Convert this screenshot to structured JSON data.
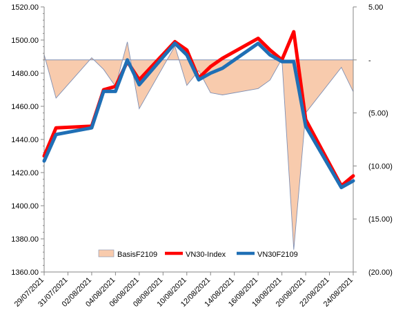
{
  "chart_data": {
    "type": "line",
    "title": "",
    "xlabel": "",
    "ylabel": "",
    "y2label": "",
    "xlim": [
      "2021-07-29",
      "2021-08-24"
    ],
    "ylim": [
      1360,
      1520
    ],
    "y2lim": [
      -20,
      5
    ],
    "y2_reversed_note": "right axis: 5.00 at top, (20.00) at bottom",
    "grid": false,
    "legend_position": "bottom-center",
    "x_ticks": [
      "29/07/2021",
      "31/07/2021",
      "02/08/2021",
      "04/08/2021",
      "06/08/2021",
      "08/08/2021",
      "10/08/2021",
      "12/08/2021",
      "14/08/2021",
      "16/08/2021",
      "18/08/2021",
      "20/08/2021",
      "22/08/2021",
      "24/08/2021"
    ],
    "y_ticks": [
      "1360.00",
      "1380.00",
      "1400.00",
      "1420.00",
      "1440.00",
      "1460.00",
      "1480.00",
      "1500.00",
      "1520.00"
    ],
    "y2_ticks": [
      "5.00",
      "-",
      "(5.00)",
      "(10.00)",
      "(15.00)",
      "(20.00)"
    ],
    "colors": {
      "basis_fill": "#F8CBAD",
      "basis_line": "#7F8FB3",
      "vn30_index": "#FF0000",
      "vn30f": "#1F6FB5"
    },
    "series": [
      {
        "name": "VN30-Index",
        "axis": "left",
        "x": [
          "2021-07-29",
          "2021-07-30",
          "2021-08-02",
          "2021-08-03",
          "2021-08-04",
          "2021-08-05",
          "2021-08-06",
          "2021-08-09",
          "2021-08-10",
          "2021-08-11",
          "2021-08-12",
          "2021-08-13",
          "2021-08-16",
          "2021-08-17",
          "2021-08-18",
          "2021-08-19",
          "2021-08-20",
          "2021-08-23",
          "2021-08-24"
        ],
        "values": [
          1430,
          1447,
          1448,
          1470,
          1472,
          1487,
          1476,
          1499,
          1494,
          1477,
          1484,
          1489,
          1501,
          1494,
          1488,
          1505,
          1452,
          1412,
          1418
        ]
      },
      {
        "name": "VN30F2109",
        "axis": "left",
        "x": [
          "2021-07-29",
          "2021-07-30",
          "2021-08-02",
          "2021-08-03",
          "2021-08-04",
          "2021-08-05",
          "2021-08-06",
          "2021-08-09",
          "2021-08-10",
          "2021-08-11",
          "2021-08-12",
          "2021-08-13",
          "2021-08-16",
          "2021-08-17",
          "2021-08-18",
          "2021-08-19",
          "2021-08-20",
          "2021-08-23",
          "2021-08-24"
        ],
        "values": [
          1427,
          1443,
          1447,
          1469,
          1469,
          1488,
          1473,
          1498,
          1491,
          1476,
          1480,
          1483,
          1498,
          1491,
          1487,
          1487,
          1448,
          1411,
          1415
        ]
      },
      {
        "name": "BasisF2109",
        "axis": "right",
        "type": "area",
        "x": [
          "2021-07-29",
          "2021-07-30",
          "2021-08-02",
          "2021-08-03",
          "2021-08-04",
          "2021-08-05",
          "2021-08-06",
          "2021-08-09",
          "2021-08-10",
          "2021-08-11",
          "2021-08-12",
          "2021-08-13",
          "2021-08-16",
          "2021-08-17",
          "2021-08-18",
          "2021-08-19",
          "2021-08-20",
          "2021-08-23",
          "2021-08-24"
        ],
        "values": [
          0.5,
          -3.6,
          0.2,
          -0.9,
          -2.5,
          1.7,
          -4.6,
          1.3,
          -2.4,
          -1.0,
          -3.1,
          -3.3,
          -2.7,
          -1.9,
          0.1,
          -17.9,
          -5.0,
          -0.7,
          -3.0
        ]
      }
    ]
  }
}
